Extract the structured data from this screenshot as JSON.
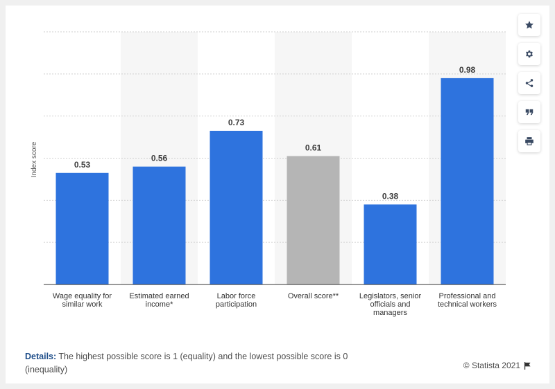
{
  "chart_data": {
    "type": "bar",
    "categories": [
      [
        "Wage equality for",
        "similar work"
      ],
      [
        "Estimated earned",
        "income*"
      ],
      [
        "Labor force",
        "participation"
      ],
      [
        "Overall score**"
      ],
      [
        "Legislators, senior",
        "officials and",
        "managers"
      ],
      [
        "Professional and",
        "technical workers"
      ]
    ],
    "values": [
      0.53,
      0.56,
      0.73,
      0.61,
      0.38,
      0.98
    ],
    "value_labels": [
      "0.53",
      "0.56",
      "0.73",
      "0.61",
      "0.38",
      "0.98"
    ],
    "bar_colors": [
      "#2e73de",
      "#2e73de",
      "#2e73de",
      "#b5b5b5",
      "#2e73de",
      "#2e73de"
    ],
    "ylabel": "Index score",
    "ylim": [
      0,
      1.2
    ],
    "grid": true,
    "legend": "none"
  },
  "details": {
    "label": "Details:",
    "text": "The highest possible score is 1 (equality) and the lowest possible score is 0 (inequality)"
  },
  "credit": {
    "text": "© Statista 2021",
    "icon": "flag-icon"
  },
  "sidebar": {
    "icons": [
      "star-icon",
      "gear-icon",
      "share-icon",
      "quote-icon",
      "print-icon"
    ]
  },
  "colors": {
    "bar": "#2e73de",
    "highlight": "#b5b5b5",
    "alt_band": "#f6f6f6"
  }
}
